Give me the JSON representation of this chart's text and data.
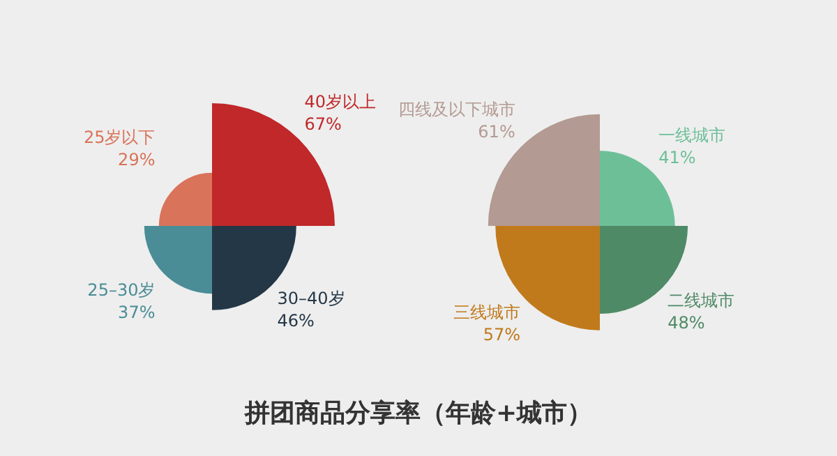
{
  "chart_data": [
    {
      "type": "other",
      "title": "拼团商品分享率（年龄+城市）",
      "categories": [
        "40岁以上",
        "30–40岁",
        "25–30岁",
        "25岁以下"
      ],
      "values": [
        67,
        46,
        37,
        29
      ],
      "value_labels": [
        "67%",
        "46%",
        "37%",
        "29%"
      ],
      "colors": [
        "#c0282a",
        "#243746",
        "#4a8d96",
        "#d9735a"
      ]
    },
    {
      "type": "other",
      "categories": [
        "一线城市",
        "二线城市",
        "三线城市",
        "四线及以下城市"
      ],
      "values": [
        41,
        48,
        57,
        61
      ],
      "value_labels": [
        "41%",
        "48%",
        "57%",
        "61%"
      ],
      "colors": [
        "#6dbf98",
        "#4f8a66",
        "#c07a1c",
        "#b39a92"
      ]
    }
  ]
}
